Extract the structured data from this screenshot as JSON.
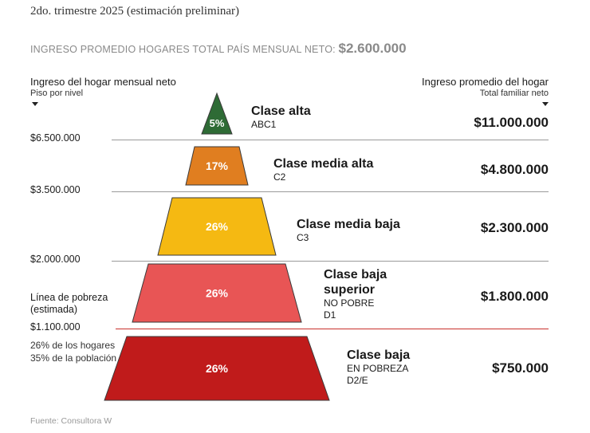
{
  "subtitle": "2do. trimestre 2025 (estimación preliminar)",
  "headline": {
    "label": "INGRESO PROMEDIO HOGARES TOTAL PAÍS MENSUAL NETO:",
    "value": "$2.600.000"
  },
  "left_header": {
    "title": "Ingreso del hogar mensual neto",
    "sub": "Piso por nivel"
  },
  "right_header": {
    "title": "Ingreso promedio del hogar",
    "sub": "Total familiar neto"
  },
  "thresholds": [
    "$6.500.000",
    "$3.500.000",
    "$2.000.000",
    "$1.100.000"
  ],
  "poverty": {
    "title": "Línea de pobreza",
    "sub": "(estimada)",
    "note1": "26% de los hogares",
    "note2": "35% de la población"
  },
  "source": "Fuente: Consultora W",
  "chart_data": {
    "type": "pyramid",
    "levels": [
      {
        "name": "Clase alta",
        "name2": "",
        "code": "ABC1",
        "code2": "",
        "pct": 5,
        "pct_label": "5%",
        "income": "$11.000.000",
        "color": "#2e6b35"
      },
      {
        "name": "Clase media alta",
        "name2": "",
        "code": "C2",
        "code2": "",
        "pct": 17,
        "pct_label": "17%",
        "income": "$4.800.000",
        "color": "#e07e20"
      },
      {
        "name": "Clase media baja",
        "name2": "",
        "code": "C3",
        "code2": "",
        "pct": 26,
        "pct_label": "26%",
        "income": "$2.300.000",
        "color": "#f5b912"
      },
      {
        "name": "Clase baja",
        "name2": "superior",
        "code": "NO POBRE",
        "code2": "D1",
        "pct": 26,
        "pct_label": "26%",
        "income": "$1.800.000",
        "color": "#e85555"
      },
      {
        "name": "Clase baja",
        "name2": "",
        "code": "EN POBREZA",
        "code2": "D2/E",
        "pct": 26,
        "pct_label": "26%",
        "income": "$750.000",
        "color": "#c01b1b"
      }
    ]
  }
}
